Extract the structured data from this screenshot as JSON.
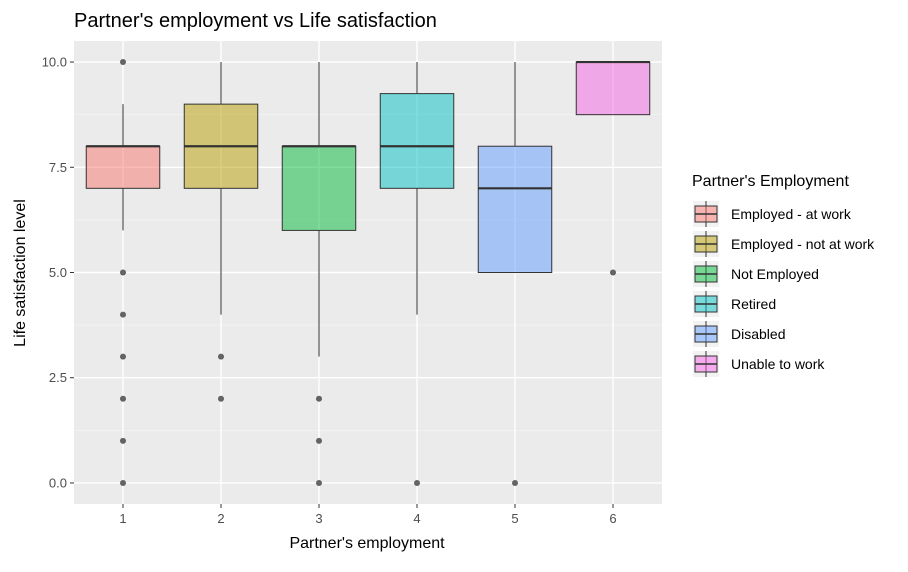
{
  "chart_data": {
    "type": "boxplot",
    "title": "Partner's employment vs Life satisfaction",
    "xlabel": "Partner's employment",
    "ylabel": "Life satisfaction level",
    "categories": [
      "1",
      "2",
      "3",
      "4",
      "5",
      "6"
    ],
    "ylim": [
      -0.5,
      10.5
    ],
    "yticks": [
      0.0,
      2.5,
      5.0,
      7.5,
      10.0
    ],
    "ytick_labels": [
      "0.0",
      "2.5",
      "5.0",
      "7.5",
      "10.0"
    ],
    "grid": true,
    "legend_position": "right",
    "legend_title": "Partner's Employment",
    "series": [
      {
        "name": "Employed - at work",
        "category": "1",
        "color": "#F8766D",
        "q1": 7,
        "median": 8,
        "q3": 8,
        "whisker_low": 6,
        "whisker_high": 9,
        "outliers": [
          10,
          5,
          4,
          3,
          2,
          1,
          0
        ]
      },
      {
        "name": "Employed - not at work",
        "category": "2",
        "color": "#B79F00",
        "q1": 7,
        "median": 8,
        "q3": 9,
        "whisker_low": 4,
        "whisker_high": 10,
        "outliers": [
          3,
          2
        ]
      },
      {
        "name": "Not Employed",
        "category": "3",
        "color": "#00BA38",
        "q1": 6,
        "median": 8,
        "q3": 8,
        "whisker_low": 3,
        "whisker_high": 10,
        "outliers": [
          2,
          1,
          0
        ]
      },
      {
        "name": "Retired",
        "category": "4",
        "color": "#00BFC4",
        "q1": 7,
        "median": 8,
        "q3": 9.25,
        "whisker_low": 4,
        "whisker_high": 10,
        "outliers": [
          0
        ]
      },
      {
        "name": "Disabled",
        "category": "5",
        "color": "#619CFF",
        "q1": 5,
        "median": 7,
        "q3": 8,
        "whisker_low": 5,
        "whisker_high": 10,
        "outliers": [
          0
        ]
      },
      {
        "name": "Unable to work",
        "category": "6",
        "color": "#F564E3",
        "q1": 8.75,
        "median": 10,
        "q3": 10,
        "whisker_low": 8.75,
        "whisker_high": 10,
        "outliers": [
          5
        ]
      }
    ]
  }
}
